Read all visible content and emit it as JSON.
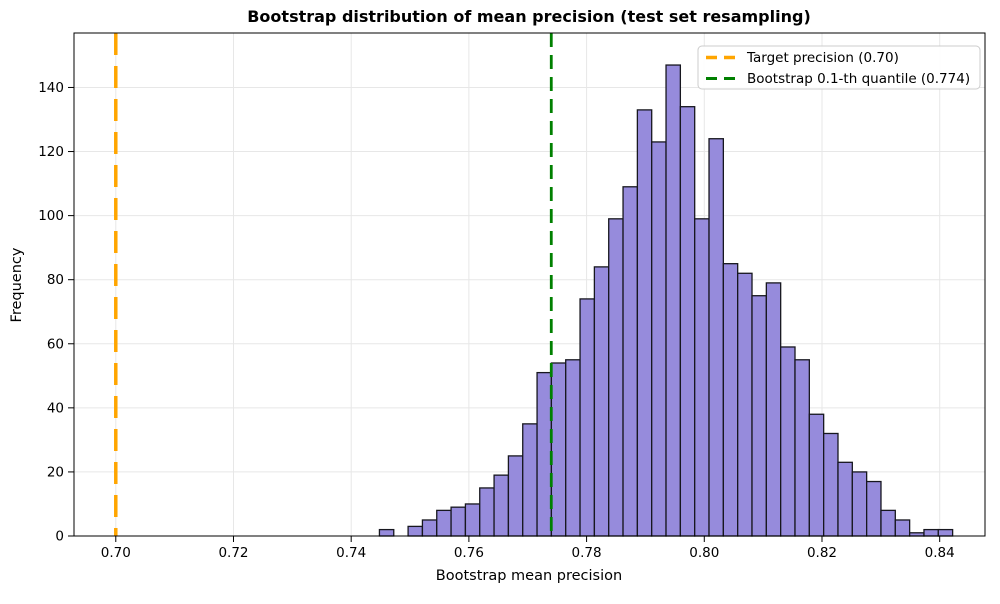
{
  "chart_data": {
    "type": "bar",
    "subtype": "histogram",
    "title": "Bootstrap distribution of mean precision (test set resampling)",
    "xlabel": "Bootstrap mean precision",
    "ylabel": "Frequency",
    "bin_start": 0.7448,
    "bin_width": 0.002435,
    "counts": [
      2,
      0,
      3,
      5,
      8,
      9,
      10,
      15,
      19,
      25,
      35,
      51,
      54,
      55,
      74,
      84,
      99,
      109,
      133,
      123,
      147,
      134,
      99,
      124,
      85,
      82,
      75,
      79,
      59,
      55,
      38,
      32,
      23,
      20,
      17,
      8,
      5,
      1,
      2,
      2
    ],
    "total_resamples": 2000,
    "xlim": [
      0.6929,
      0.8477
    ],
    "ylim": [
      0,
      157
    ],
    "xticks": {
      "values": [
        0.7,
        0.72,
        0.74,
        0.76,
        0.78,
        0.8,
        0.82,
        0.84
      ],
      "labels": [
        "0.70",
        "0.72",
        "0.74",
        "0.76",
        "0.78",
        "0.80",
        "0.82",
        "0.84"
      ]
    },
    "yticks": {
      "values": [
        0,
        20,
        40,
        60,
        80,
        100,
        120,
        140
      ],
      "labels": [
        "0",
        "20",
        "40",
        "60",
        "80",
        "100",
        "120",
        "140"
      ]
    },
    "grid": true,
    "legend_position": "upper-right",
    "vlines": [
      {
        "value": 0.7,
        "color": "#FFA500",
        "style": "dashed",
        "label": "Target precision (0.70)"
      },
      {
        "value": 0.774,
        "color": "#008000",
        "style": "dashed",
        "label": "Bootstrap 0.1-th quantile (0.774)"
      }
    ],
    "colors": {
      "bar_fill": "#968BDC",
      "bar_edge": "#17171F",
      "grid": "#E7E7E7",
      "spine": "#000000",
      "background": "#FFFFFF",
      "legend_border": "#CCCCCC"
    }
  }
}
